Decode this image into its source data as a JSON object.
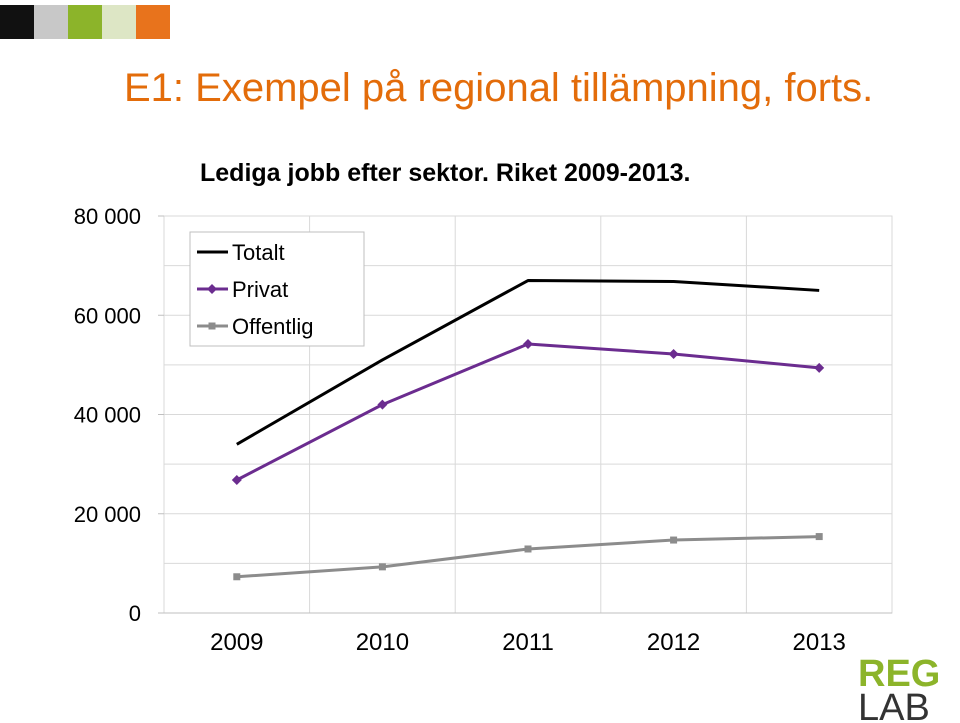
{
  "slide": {
    "title": "E1: Exempel på regional tillämpning, forts.",
    "title_color": "#E36C0A",
    "swatch_colors": [
      "#111111",
      "#C8C8C8",
      "#8CB42A",
      "#DDE6C5",
      "#E8731C"
    ]
  },
  "logo": {
    "line1": "REG",
    "line2": "LAB",
    "line1_color": "#8CB42A",
    "line2_color": "#333333"
  },
  "chart_data": {
    "type": "line",
    "title": "Lediga jobb efter sektor. Riket 2009-2013.",
    "categories": [
      "2009",
      "2010",
      "2011",
      "2012",
      "2013"
    ],
    "ylim": [
      0,
      80000
    ],
    "yticks": [
      0,
      20000,
      40000,
      60000,
      80000
    ],
    "ytick_labels": [
      "0",
      "20 000",
      "40 000",
      "60 000",
      "80 000"
    ],
    "grid": true,
    "legend_position": "top-left",
    "series": [
      {
        "name": "Totalt",
        "values": [
          34000,
          51000,
          67000,
          66800,
          65000
        ],
        "color": "#000000",
        "marker": "none"
      },
      {
        "name": "Privat",
        "values": [
          26800,
          42000,
          54200,
          52200,
          49400
        ],
        "color": "#6B2C8F",
        "marker": "diamond"
      },
      {
        "name": "Offentlig",
        "values": [
          7300,
          9300,
          12900,
          14700,
          15400
        ],
        "color": "#8C8C8C",
        "marker": "square"
      }
    ]
  }
}
